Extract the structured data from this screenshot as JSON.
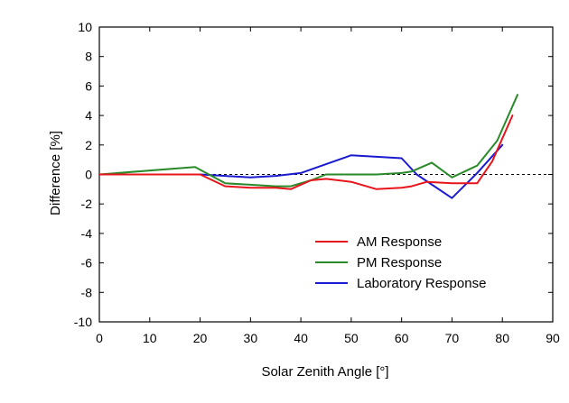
{
  "chart_data": {
    "type": "line",
    "title": "",
    "xlabel": "Solar Zenith Angle [°]",
    "ylabel": "Difference [%]",
    "xlim": [
      0,
      90
    ],
    "ylim": [
      -10,
      10
    ],
    "xticks": [
      0,
      10,
      20,
      30,
      40,
      50,
      60,
      70,
      80,
      90
    ],
    "yticks": [
      10,
      8,
      6,
      4,
      2,
      0,
      -2,
      -4,
      -6,
      -8,
      -10
    ],
    "grid": false,
    "reference_line": {
      "y": 0,
      "style": "dashed"
    },
    "legend_position": "bottom-right",
    "series": [
      {
        "name": "AM Response",
        "color": "#e8141b",
        "x": [
          0,
          20,
          25,
          30,
          35,
          38,
          42,
          45,
          50,
          55,
          60,
          62,
          65,
          70,
          75,
          78,
          82
        ],
        "y": [
          0,
          0,
          -0.8,
          -0.9,
          -0.9,
          -1.0,
          -0.4,
          -0.3,
          -0.5,
          -1.0,
          -0.9,
          -0.8,
          -0.5,
          -0.6,
          -0.6,
          0.9,
          4.0
        ]
      },
      {
        "name": "PM Response",
        "color": "#2a8a2a",
        "x": [
          0,
          19,
          25,
          30,
          35,
          38,
          42,
          45,
          50,
          55,
          60,
          62,
          66,
          70,
          75,
          79,
          83
        ],
        "y": [
          0,
          0.5,
          -0.6,
          -0.7,
          -0.8,
          -0.8,
          -0.4,
          0.0,
          0.0,
          0.0,
          0.1,
          0.2,
          0.8,
          -0.2,
          0.6,
          2.3,
          5.4
        ]
      },
      {
        "name": "Laboratory Response",
        "color": "#1a1ad0",
        "x": [
          0,
          20,
          25,
          30,
          35,
          40,
          45,
          50,
          55,
          60,
          63,
          70,
          75,
          80
        ],
        "y": [
          0,
          0,
          -0.1,
          -0.2,
          -0.1,
          0.1,
          0.7,
          1.3,
          1.2,
          1.1,
          0.0,
          -1.6,
          0.1,
          2.0
        ]
      }
    ]
  }
}
